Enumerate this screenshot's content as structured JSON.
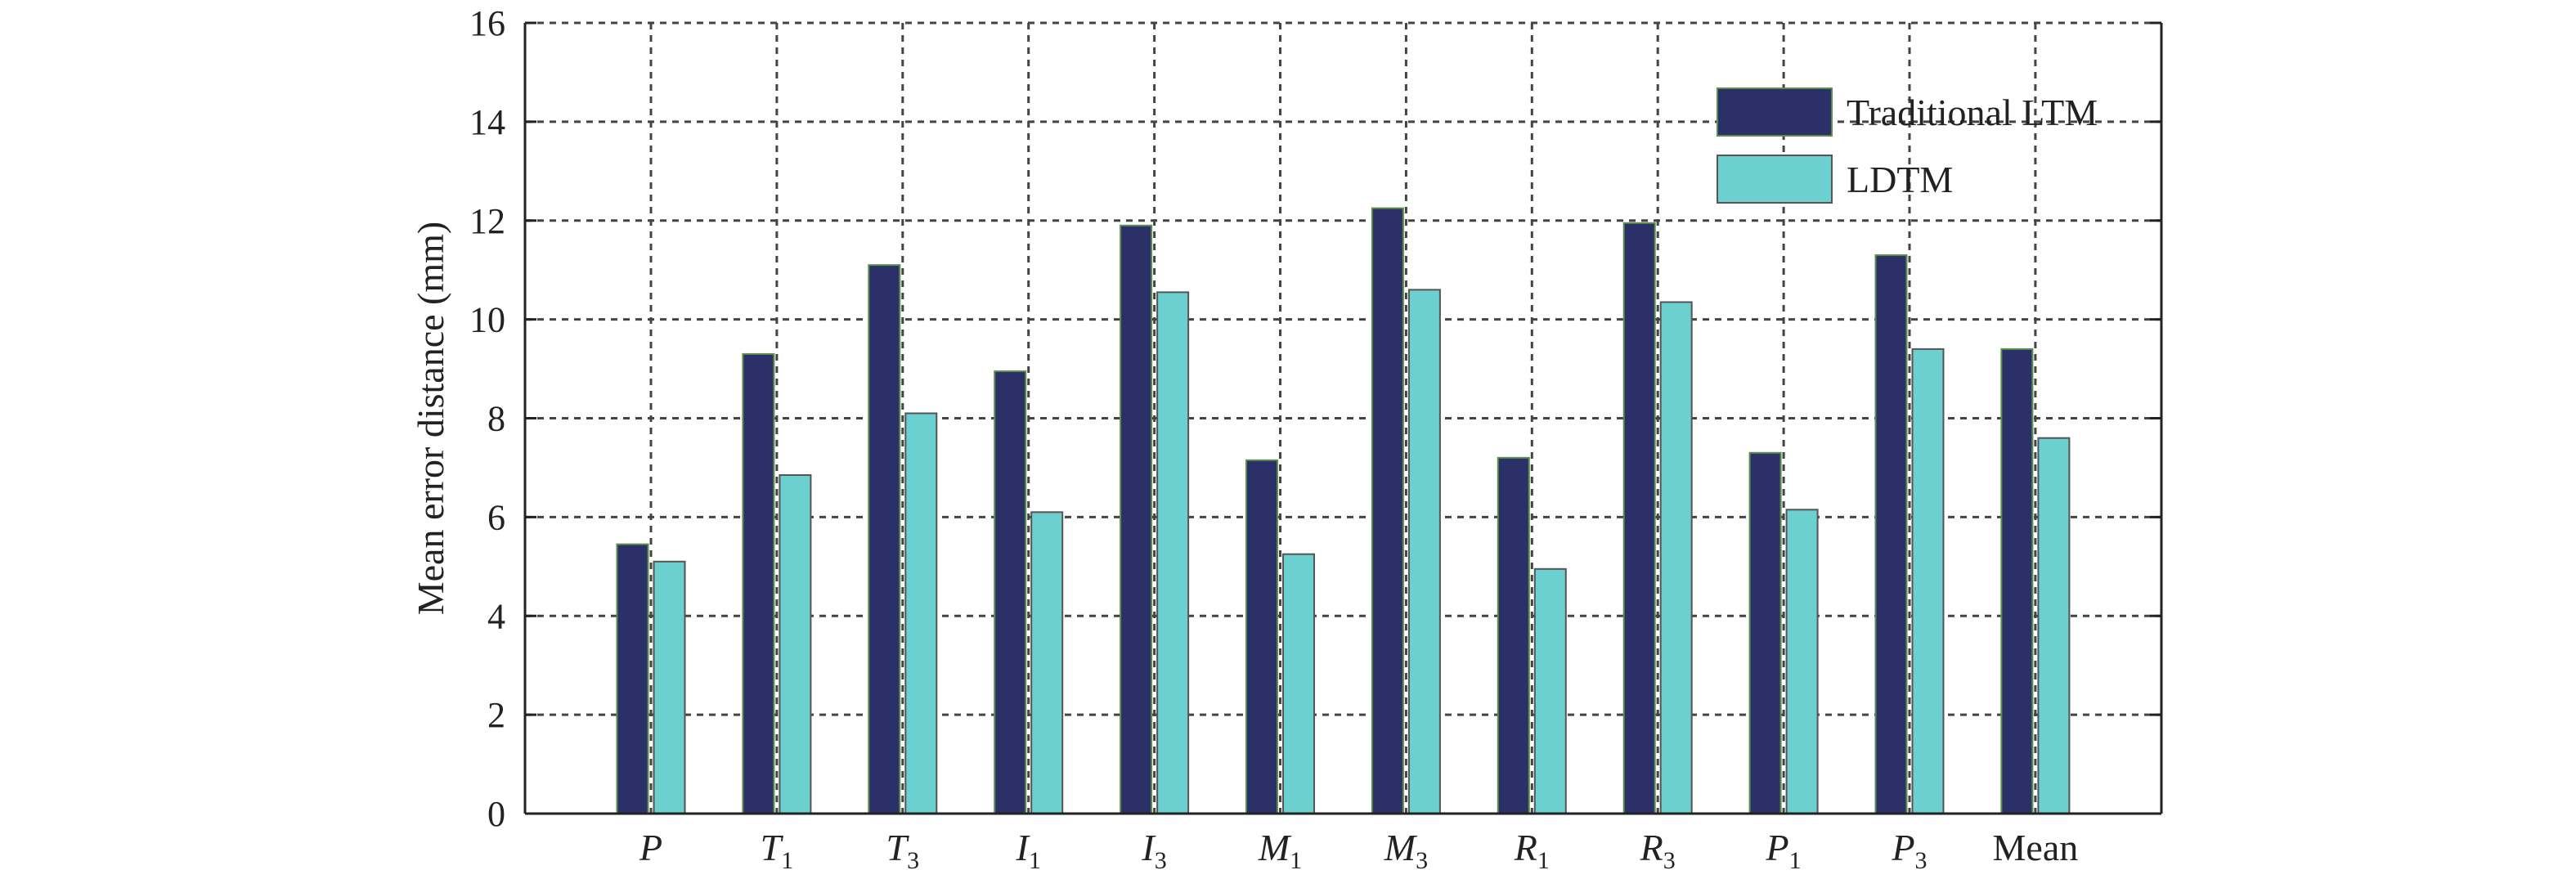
{
  "chart_data": {
    "type": "bar",
    "categories": [
      {
        "base": "P",
        "sub": "",
        "italic": true
      },
      {
        "base": "T",
        "sub": "1",
        "italic": true
      },
      {
        "base": "T",
        "sub": "3",
        "italic": true
      },
      {
        "base": "I",
        "sub": "1",
        "italic": true
      },
      {
        "base": "I",
        "sub": "3",
        "italic": true
      },
      {
        "base": "M",
        "sub": "1",
        "italic": true
      },
      {
        "base": "M",
        "sub": "3",
        "italic": true
      },
      {
        "base": "R",
        "sub": "1",
        "italic": true
      },
      {
        "base": "R",
        "sub": "3",
        "italic": true
      },
      {
        "base": "P",
        "sub": "1",
        "italic": true
      },
      {
        "base": "P",
        "sub": "3",
        "italic": true
      },
      {
        "base": "Mean",
        "sub": "",
        "italic": false
      }
    ],
    "series": [
      {
        "name": "Traditional LTM",
        "color": "#2b3168",
        "values": [
          5.45,
          9.3,
          11.1,
          8.95,
          11.9,
          7.15,
          12.25,
          7.2,
          11.95,
          7.3,
          11.3,
          9.4
        ]
      },
      {
        "name": "LDTM",
        "color": "#6ccfd0",
        "values": [
          5.1,
          6.85,
          8.1,
          6.1,
          10.55,
          5.25,
          10.6,
          4.95,
          10.35,
          6.15,
          9.4,
          7.6
        ]
      }
    ],
    "ylabel": "Mean error distance (mm)",
    "xlabel": "",
    "ylim": [
      0,
      16
    ],
    "yticks": [
      0,
      2,
      4,
      6,
      8,
      10,
      12,
      14,
      16
    ],
    "grid": true,
    "legend_position": "top-right"
  }
}
